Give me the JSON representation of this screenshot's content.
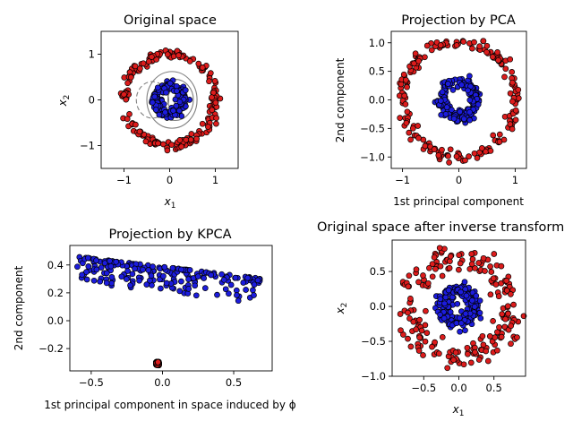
{
  "figure": {
    "background": "#ffffff",
    "outer_color": "#dd1c1c",
    "inner_color": "#1c1cdd",
    "edge_color": "#000000",
    "contour_color": "#808080"
  },
  "chart_data": [
    {
      "type": "scatter",
      "title": "Original space",
      "xlabel": "x₁",
      "ylabel": "x₂",
      "xlim": [
        -1.5,
        1.5
      ],
      "ylim": [
        -1.5,
        1.5
      ],
      "xticks": [
        -1,
        0,
        1
      ],
      "yticks": [
        -1,
        0,
        1
      ],
      "xtick_labels": [
        "−1",
        "0",
        "1"
      ],
      "ytick_labels": [
        "−1",
        "0",
        "1"
      ],
      "grid": false,
      "legend": "none",
      "series": [
        {
          "shape": "ring",
          "cx": 0,
          "cy": 0,
          "radius": 1.0,
          "noise": 0.05,
          "count": 200,
          "color": "#dd1c1c"
        },
        {
          "shape": "ring",
          "cx": 0,
          "cy": 0,
          "radius": 0.3,
          "noise": 0.05,
          "count": 200,
          "color": "#1c1cdd"
        }
      ],
      "contours": [
        {
          "cx": 0.05,
          "cy": 0,
          "rx": 0.55,
          "ry": 0.62,
          "dashed": false
        },
        {
          "cx": 0.12,
          "cy": 0,
          "rx": 0.4,
          "ry": 0.45,
          "dashed": false
        },
        {
          "cx": 0.18,
          "cy": 0,
          "rx": 0.22,
          "ry": 0.28,
          "dashed": false
        },
        {
          "cx": 0.2,
          "cy": 0,
          "rx": 0.1,
          "ry": 0.16,
          "dashed": false
        },
        {
          "cx": -0.38,
          "cy": 0,
          "rx": 0.35,
          "ry": 0.4,
          "dashed": true
        },
        {
          "cx": -0.22,
          "cy": 0,
          "rx": 0.2,
          "ry": 0.27,
          "dashed": true
        }
      ]
    },
    {
      "type": "scatter",
      "title": "Projection by PCA",
      "xlabel": "1st principal component",
      "ylabel": "2nd component",
      "xlim": [
        -1.2,
        1.2
      ],
      "ylim": [
        -1.2,
        1.2
      ],
      "xticks": [
        -1,
        0,
        1
      ],
      "yticks": [
        -1.0,
        -0.5,
        0.0,
        0.5,
        1.0
      ],
      "xtick_labels": [
        "−1",
        "0",
        "1"
      ],
      "ytick_labels": [
        "−1.0",
        "−0.5",
        "0.0",
        "0.5",
        "1.0"
      ],
      "grid": false,
      "legend": "none",
      "series": [
        {
          "shape": "ring",
          "cx": 0,
          "cy": 0,
          "radius": 1.0,
          "noise": 0.05,
          "count": 200,
          "color": "#dd1c1c"
        },
        {
          "shape": "ring",
          "cx": 0,
          "cy": 0,
          "radius": 0.3,
          "noise": 0.05,
          "count": 200,
          "color": "#1c1cdd"
        }
      ]
    },
    {
      "type": "scatter",
      "title": "Projection by KPCA",
      "xlabel": "1st principal component in space induced by ϕ",
      "ylabel": "2nd component",
      "xlim": [
        -0.65,
        0.77
      ],
      "ylim": [
        -0.36,
        0.54
      ],
      "xticks": [
        -0.5,
        0.0,
        0.5
      ],
      "yticks": [
        -0.2,
        0.0,
        0.2,
        0.4
      ],
      "xtick_labels": [
        "−0.5",
        "0.0",
        "0.5"
      ],
      "ytick_labels": [
        "−0.2",
        "0.0",
        "0.2",
        "0.4"
      ],
      "grid": false,
      "legend": "none",
      "series": [
        {
          "shape": "cluster",
          "x": [
            -0.045,
            -0.025
          ],
          "y": [
            -0.32,
            -0.295
          ],
          "count": 200,
          "color": "#dd1c1c"
        },
        {
          "shape": "band",
          "x": [
            -0.6,
            0.71
          ],
          "y_top": [
            0.46,
            0.3
          ],
          "y_spread": 0.18,
          "count": 200,
          "color": "#1c1cdd"
        }
      ]
    },
    {
      "type": "scatter",
      "title": "Original space after inverse transform",
      "xlabel": "x₁",
      "ylabel": "x₂",
      "xlim": [
        -0.95,
        0.95
      ],
      "ylim": [
        -1.0,
        0.95
      ],
      "xticks": [
        -0.5,
        0.0,
        0.5
      ],
      "yticks": [
        -1.0,
        -0.5,
        0.0,
        0.5
      ],
      "xtick_labels": [
        "−0.5",
        "0.0",
        "0.5"
      ],
      "ytick_labels": [
        "−1.0",
        "−0.5",
        "0.0",
        "0.5"
      ],
      "grid": false,
      "legend": "none",
      "series": [
        {
          "shape": "ring",
          "cx": 0,
          "cy": 0,
          "radius": 0.72,
          "noise": 0.1,
          "count": 200,
          "color": "#dd1c1c"
        },
        {
          "shape": "ring",
          "cx": 0,
          "cy": 0,
          "radius": 0.23,
          "noise": 0.05,
          "count": 200,
          "color": "#1c1cdd"
        }
      ]
    }
  ]
}
